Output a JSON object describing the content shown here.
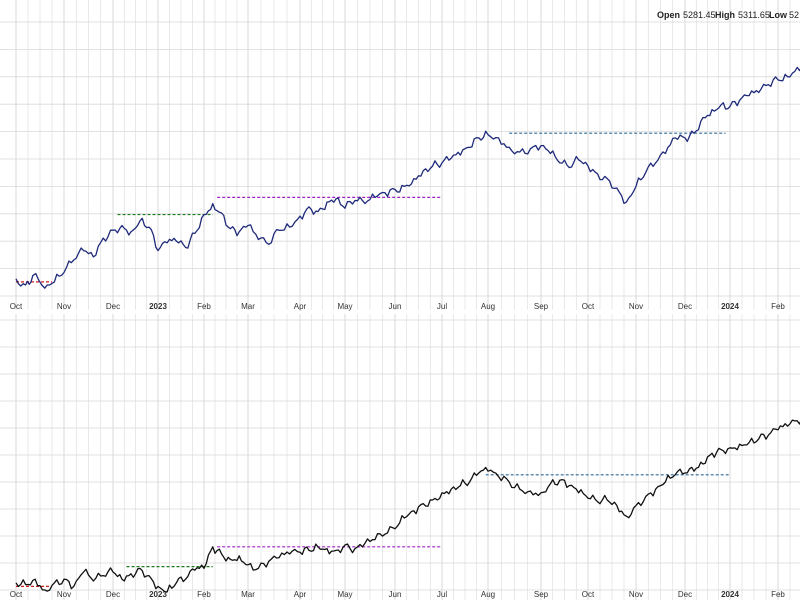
{
  "quote": {
    "open_label": "Open",
    "open_value": "5281.45",
    "high_label": "High",
    "high_value": "5311.65",
    "low_label": "Low",
    "low_value": "52"
  },
  "colors": {
    "top_line": "#1f2a7a",
    "bottom_line": "#111111",
    "grid": "#d9d9d9",
    "red_level": "#d01c1c",
    "green_level": "#1d7a1d",
    "purple_level": "#a020c8",
    "blue_level": "#2f6c9a"
  },
  "months": [
    "Oct",
    "Nov",
    "Dec",
    "2023",
    "Feb",
    "Mar",
    "Apr",
    "May",
    "Jun",
    "Jul",
    "Aug",
    "Sep",
    "Oct",
    "Nov",
    "Dec",
    "2024",
    "Feb"
  ],
  "bold_months": [
    "2023",
    "2024"
  ],
  "chart_data": [
    {
      "type": "line",
      "panel": "top",
      "xrange": [
        0,
        17.3
      ],
      "ylim": [
        3550,
        5300
      ],
      "series": [
        {
          "values": [
            [
              0,
              3660
            ],
            [
              0.2,
              3620
            ],
            [
              0.35,
              3680
            ],
            [
              0.6,
              3600
            ],
            [
              0.8,
              3640
            ],
            [
              1.0,
              3700
            ],
            [
              1.2,
              3780
            ],
            [
              1.4,
              3840
            ],
            [
              1.6,
              3800
            ],
            [
              1.8,
              3920
            ],
            [
              2.0,
              3970
            ],
            [
              2.2,
              4000
            ],
            [
              2.4,
              3960
            ],
            [
              2.6,
              4030
            ],
            [
              2.8,
              3990
            ],
            [
              3.0,
              3840
            ],
            [
              3.2,
              3890
            ],
            [
              3.4,
              3900
            ],
            [
              3.6,
              3860
            ],
            [
              3.8,
              3950
            ],
            [
              4.0,
              4070
            ],
            [
              4.2,
              4140
            ],
            [
              4.4,
              4080
            ],
            [
              4.6,
              3980
            ],
            [
              4.8,
              3960
            ],
            [
              5.0,
              4000
            ],
            [
              5.2,
              3910
            ],
            [
              5.4,
              3880
            ],
            [
              5.6,
              3970
            ],
            [
              5.8,
              3990
            ],
            [
              6.0,
              4060
            ],
            [
              6.2,
              4120
            ],
            [
              6.4,
              4090
            ],
            [
              6.6,
              4150
            ],
            [
              6.8,
              4170
            ],
            [
              7.0,
              4110
            ],
            [
              7.2,
              4160
            ],
            [
              7.4,
              4140
            ],
            [
              7.6,
              4180
            ],
            [
              7.8,
              4210
            ],
            [
              8.0,
              4230
            ],
            [
              8.2,
              4250
            ],
            [
              8.4,
              4300
            ],
            [
              8.6,
              4350
            ],
            [
              8.8,
              4380
            ],
            [
              9.0,
              4400
            ],
            [
              9.2,
              4430
            ],
            [
              9.4,
              4450
            ],
            [
              9.6,
              4500
            ],
            [
              9.8,
              4560
            ],
            [
              10.0,
              4580
            ],
            [
              10.2,
              4560
            ],
            [
              10.4,
              4500
            ],
            [
              10.6,
              4470
            ],
            [
              10.8,
              4490
            ],
            [
              11.0,
              4510
            ],
            [
              11.2,
              4460
            ],
            [
              11.4,
              4400
            ],
            [
              11.6,
              4370
            ],
            [
              11.8,
              4420
            ],
            [
              12.0,
              4380
            ],
            [
              12.2,
              4330
            ],
            [
              12.4,
              4300
            ],
            [
              12.6,
              4240
            ],
            [
              12.8,
              4150
            ],
            [
              13.0,
              4250
            ],
            [
              13.2,
              4340
            ],
            [
              13.4,
              4400
            ],
            [
              13.6,
              4460
            ],
            [
              13.8,
              4560
            ],
            [
              14.0,
              4560
            ],
            [
              14.2,
              4590
            ],
            [
              14.4,
              4690
            ],
            [
              14.6,
              4740
            ],
            [
              14.8,
              4770
            ],
            [
              15.0,
              4760
            ],
            [
              15.2,
              4800
            ],
            [
              15.4,
              4830
            ],
            [
              15.6,
              4850
            ],
            [
              15.8,
              4900
            ],
            [
              16.0,
              4930
            ],
            [
              16.2,
              4950
            ],
            [
              16.4,
              5010
            ],
            [
              16.6,
              5050
            ],
            [
              16.8,
              5080
            ],
            [
              17.0,
              5100
            ],
            [
              17.2,
              5130
            ],
            [
              17.3,
              5120
            ]
          ]
        }
      ],
      "levels": [
        {
          "color": "red",
          "y": 3640,
          "x1": 0,
          "x2": 0.75
        },
        {
          "color": "green",
          "y": 4070,
          "x1": 2.1,
          "x2": 4.2
        },
        {
          "color": "purple",
          "y": 4180,
          "x1": 4.3,
          "x2": 9.0
        },
        {
          "color": "blue",
          "y": 4590,
          "x1": 10.4,
          "x2": 14.9
        }
      ]
    },
    {
      "type": "line",
      "panel": "bottom",
      "xrange": [
        0,
        17.3
      ],
      "ylim": [
        11000,
        18500
      ],
      "series": [
        {
          "values": [
            [
              0,
              11200
            ],
            [
              0.2,
              11150
            ],
            [
              0.4,
              11300
            ],
            [
              0.6,
              11000
            ],
            [
              0.8,
              11200
            ],
            [
              1.0,
              11300
            ],
            [
              1.2,
              11100
            ],
            [
              1.4,
              11500
            ],
            [
              1.6,
              11250
            ],
            [
              1.8,
              11400
            ],
            [
              2.0,
              11500
            ],
            [
              2.2,
              11300
            ],
            [
              2.4,
              11450
            ],
            [
              2.6,
              11600
            ],
            [
              2.8,
              11400
            ],
            [
              3.0,
              11100
            ],
            [
              3.2,
              10950
            ],
            [
              3.4,
              11200
            ],
            [
              3.6,
              11300
            ],
            [
              3.8,
              11550
            ],
            [
              4.0,
              11600
            ],
            [
              4.2,
              12200
            ],
            [
              4.4,
              12000
            ],
            [
              4.6,
              11850
            ],
            [
              4.8,
              11950
            ],
            [
              5.0,
              11700
            ],
            [
              5.2,
              11600
            ],
            [
              5.4,
              11800
            ],
            [
              5.6,
              11900
            ],
            [
              5.8,
              12000
            ],
            [
              6.0,
              12050
            ],
            [
              6.2,
              12100
            ],
            [
              6.4,
              12200
            ],
            [
              6.6,
              12150
            ],
            [
              6.8,
              12100
            ],
            [
              7.0,
              12250
            ],
            [
              7.2,
              12150
            ],
            [
              7.4,
              12300
            ],
            [
              7.6,
              12400
            ],
            [
              7.8,
              12550
            ],
            [
              8.0,
              12700
            ],
            [
              8.2,
              13000
            ],
            [
              8.4,
              13200
            ],
            [
              8.6,
              13400
            ],
            [
              8.8,
              13500
            ],
            [
              9.0,
              13700
            ],
            [
              9.2,
              13800
            ],
            [
              9.4,
              13900
            ],
            [
              9.6,
              14000
            ],
            [
              9.8,
              14250
            ],
            [
              10.0,
              14300
            ],
            [
              10.2,
              14150
            ],
            [
              10.4,
              14000
            ],
            [
              10.6,
              13800
            ],
            [
              10.8,
              13750
            ],
            [
              11.0,
              13700
            ],
            [
              11.2,
              13950
            ],
            [
              11.4,
              14050
            ],
            [
              11.6,
              13900
            ],
            [
              11.8,
              13700
            ],
            [
              12.0,
              13550
            ],
            [
              12.2,
              13450
            ],
            [
              12.4,
              13500
            ],
            [
              12.6,
              13350
            ],
            [
              12.8,
              13050
            ],
            [
              13.0,
              13350
            ],
            [
              13.2,
              13600
            ],
            [
              13.4,
              13800
            ],
            [
              13.6,
              14000
            ],
            [
              13.8,
              14200
            ],
            [
              14.0,
              14250
            ],
            [
              14.2,
              14300
            ],
            [
              14.4,
              14500
            ],
            [
              14.6,
              14800
            ],
            [
              14.8,
              14900
            ],
            [
              15.0,
              14950
            ],
            [
              15.2,
              15050
            ],
            [
              15.4,
              15100
            ],
            [
              15.6,
              15200
            ],
            [
              15.8,
              15300
            ],
            [
              16.0,
              15450
            ],
            [
              16.2,
              15550
            ],
            [
              16.4,
              15700
            ],
            [
              16.6,
              15750
            ],
            [
              16.8,
              15850
            ],
            [
              17.0,
              15950
            ],
            [
              17.2,
              16050
            ],
            [
              17.3,
              16000
            ]
          ]
        }
      ],
      "levels": [
        {
          "color": "red",
          "y": 11100,
          "x1": 0,
          "x2": 0.7
        },
        {
          "color": "green",
          "y": 11650,
          "x1": 2.3,
          "x2": 4.2
        },
        {
          "color": "purple",
          "y": 12200,
          "x1": 4.3,
          "x2": 9.0
        },
        {
          "color": "blue",
          "y": 14200,
          "x1": 9.95,
          "x2": 15.0
        }
      ]
    }
  ]
}
